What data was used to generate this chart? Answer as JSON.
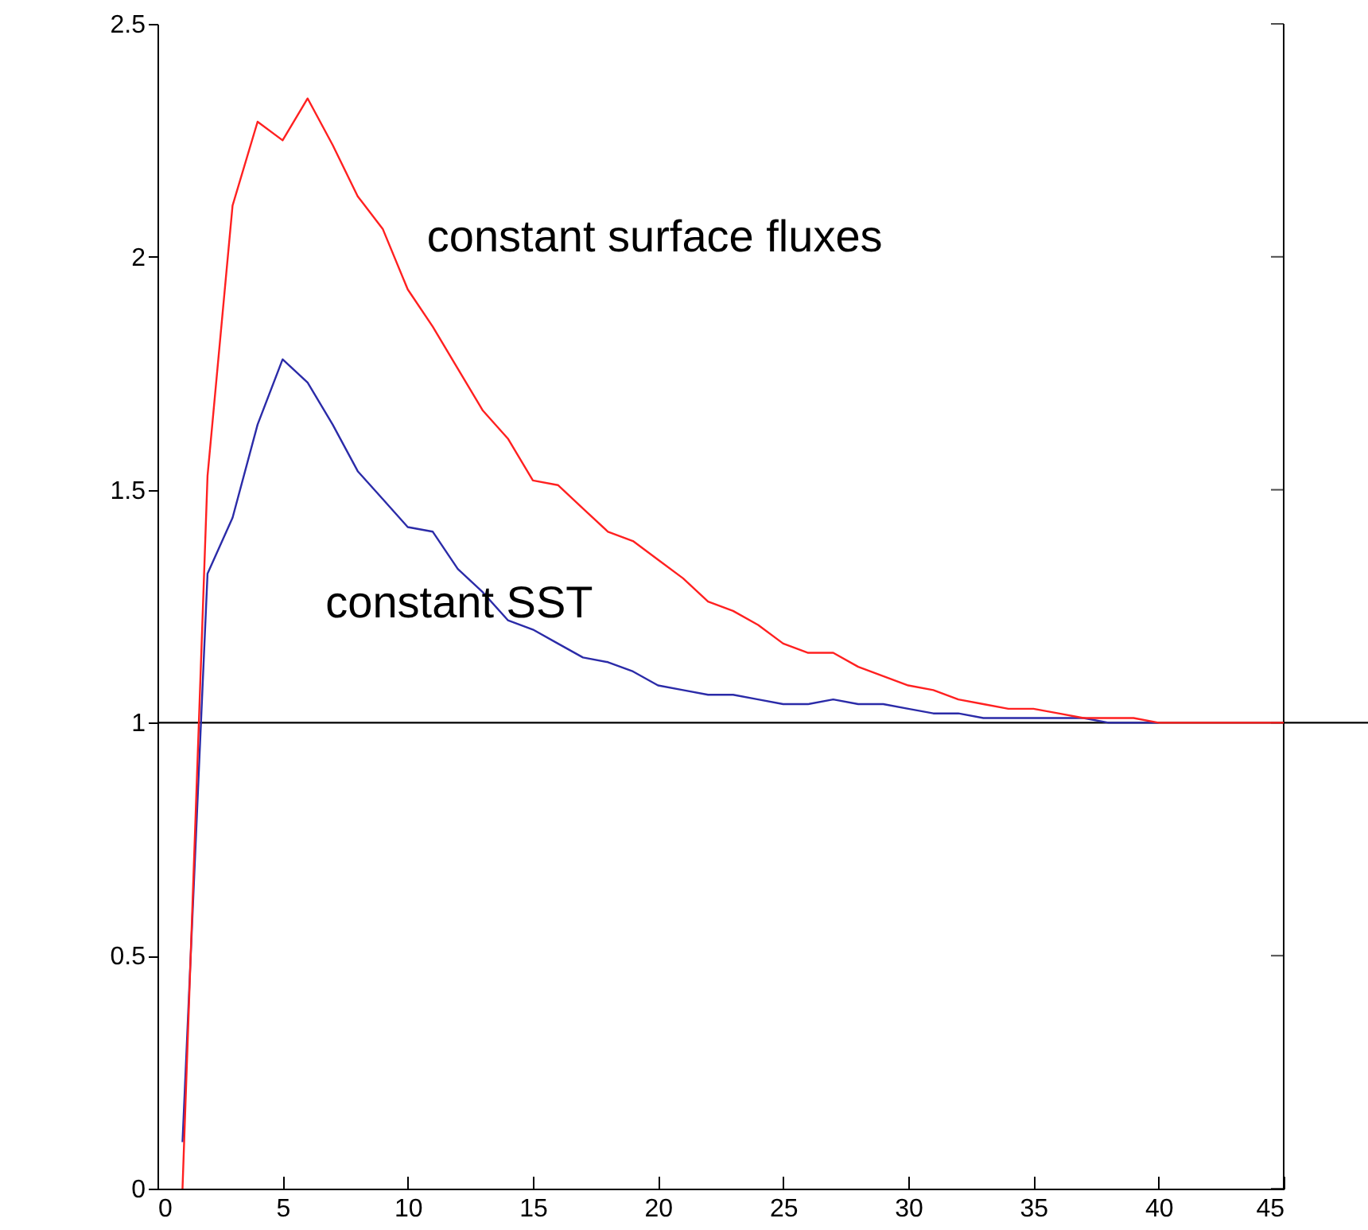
{
  "chart_data": {
    "type": "line",
    "x": [
      1,
      2,
      3,
      4,
      5,
      6,
      7,
      8,
      9,
      10,
      11,
      12,
      13,
      14,
      15,
      16,
      17,
      18,
      19,
      20,
      21,
      22,
      23,
      24,
      25,
      26,
      27,
      28,
      29,
      30,
      31,
      32,
      33,
      34,
      35,
      36,
      37,
      38,
      39,
      40,
      41,
      42,
      43,
      44,
      45
    ],
    "series": [
      {
        "name": "constant surface fluxes",
        "color": "#ff2020",
        "values": [
          0,
          1.53,
          2.11,
          2.29,
          2.25,
          2.34,
          2.24,
          2.13,
          2.06,
          1.93,
          1.85,
          1.76,
          1.67,
          1.61,
          1.52,
          1.51,
          1.46,
          1.41,
          1.39,
          1.35,
          1.31,
          1.26,
          1.24,
          1.21,
          1.17,
          1.15,
          1.15,
          1.12,
          1.1,
          1.08,
          1.07,
          1.05,
          1.04,
          1.03,
          1.03,
          1.02,
          1.01,
          1.01,
          1.01,
          1.0,
          1.0,
          1.0,
          1.0,
          1.0,
          1.0
        ]
      },
      {
        "name": "constant SST",
        "color": "#2b2ba8",
        "values": [
          0.1,
          1.32,
          1.44,
          1.64,
          1.78,
          1.73,
          1.64,
          1.54,
          1.48,
          1.42,
          1.41,
          1.33,
          1.28,
          1.22,
          1.2,
          1.17,
          1.14,
          1.13,
          1.11,
          1.08,
          1.07,
          1.06,
          1.06,
          1.05,
          1.04,
          1.04,
          1.05,
          1.04,
          1.04,
          1.03,
          1.02,
          1.02,
          1.01,
          1.01,
          1.01,
          1.01,
          1.01,
          1.0,
          1.0,
          1.0,
          null,
          null,
          null,
          null,
          null
        ]
      }
    ],
    "ref_lines": [
      {
        "axis": "y",
        "value": 1,
        "color": "#000000"
      }
    ],
    "xlim": [
      0,
      45
    ],
    "xticks": [
      0,
      5,
      10,
      15,
      20,
      25,
      30,
      35,
      40,
      45
    ],
    "ylim": [
      0,
      2.5
    ],
    "yticks": [
      0,
      0.5,
      1,
      1.5,
      2,
      2.5
    ],
    "grid": false,
    "legend": false,
    "marker": "none",
    "line_style": "solid"
  }
}
